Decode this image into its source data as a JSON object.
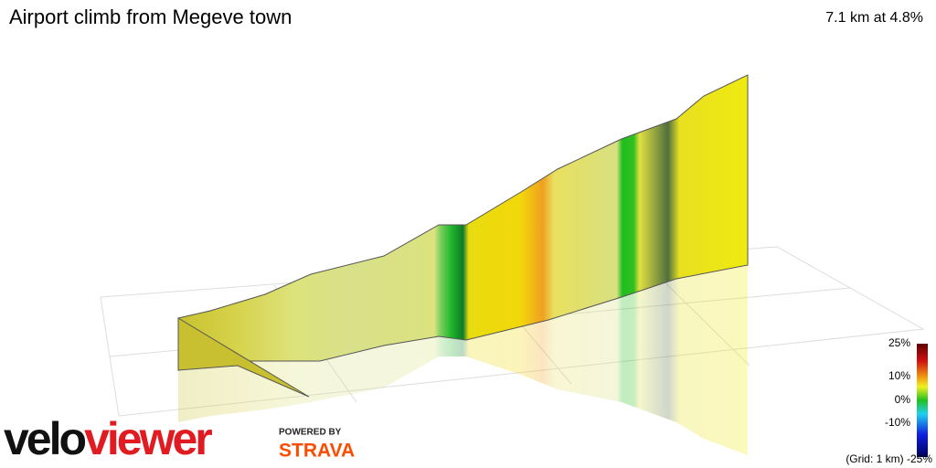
{
  "header": {
    "title": "Airport climb from Megeve town",
    "summary": "7.1 km at 4.8%"
  },
  "legend": {
    "labels": [
      "25%",
      "10%",
      "0%",
      "-10%",
      "(Grid: 1 km) -25%"
    ]
  },
  "branding": {
    "logo_left": "velo",
    "logo_right": "viewer",
    "powered": "POWERED BY",
    "partner": "STRAVA"
  }
}
